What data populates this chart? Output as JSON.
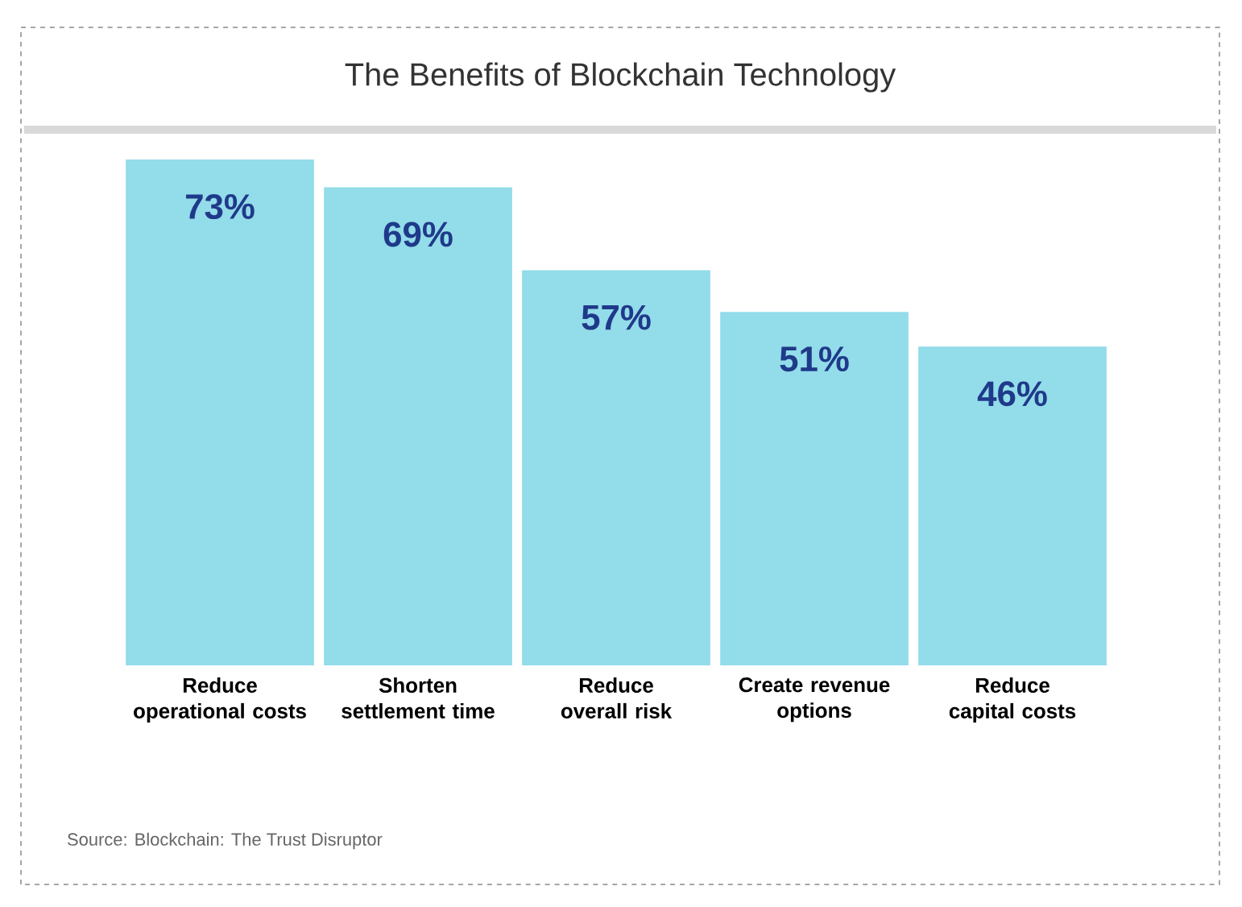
{
  "chart_data": {
    "type": "bar",
    "title": "The Benefits of Blockchain Technology",
    "categories": [
      "Reduce operational costs",
      "Shorten settlement time",
      "Reduce overall risk",
      "Create revenue options",
      "Reduce capital costs"
    ],
    "values": [
      73,
      69,
      57,
      51,
      46
    ],
    "value_labels": [
      "73%",
      "69%",
      "57%",
      "51%",
      "46%"
    ],
    "color": "#93dce9",
    "annotations": [
      "Source: Blockchain: The Trust Disruptor"
    ]
  }
}
